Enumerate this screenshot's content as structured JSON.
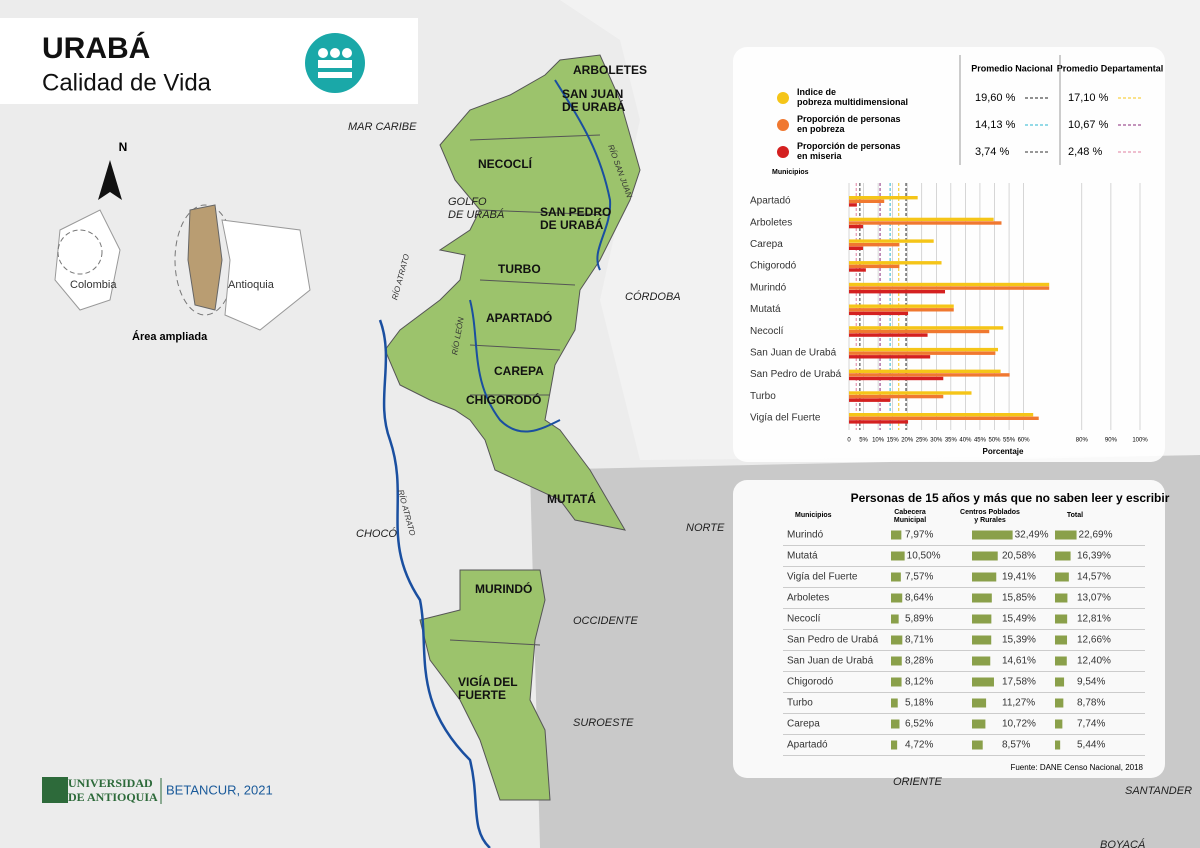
{
  "header": {
    "title": "URABÁ",
    "subtitle": "Calidad de Vida"
  },
  "map": {
    "labels": [
      {
        "lines": [
          "MAR CARIBE"
        ],
        "kind": "reg"
      },
      {
        "lines": [
          "GOLFO",
          "DE URABÁ"
        ],
        "kind": "reg"
      },
      {
        "lines": [
          "ARBOLETES"
        ],
        "kind": "lab"
      },
      {
        "lines": [
          "SAN JUAN",
          "DE URABÁ"
        ],
        "kind": "lab"
      },
      {
        "lines": [
          "NECOCLÍ"
        ],
        "kind": "lab"
      },
      {
        "lines": [
          "SAN PEDRO",
          "DE URABÁ"
        ],
        "kind": "lab"
      },
      {
        "lines": [
          "TURBO"
        ],
        "kind": "lab"
      },
      {
        "lines": [
          "CÓRDOBA"
        ],
        "kind": "reg"
      },
      {
        "lines": [
          "APARTADÓ"
        ],
        "kind": "lab"
      },
      {
        "lines": [
          "CAREPA"
        ],
        "kind": "lab"
      },
      {
        "lines": [
          "CHIGORODÓ"
        ],
        "kind": "lab"
      },
      {
        "lines": [
          "MUTATÁ"
        ],
        "kind": "lab"
      },
      {
        "lines": [
          "CHOCÓ"
        ],
        "kind": "reg"
      },
      {
        "lines": [
          "NORTE"
        ],
        "kind": "reg"
      },
      {
        "lines": [
          "MURINDÓ"
        ],
        "kind": "lab"
      },
      {
        "lines": [
          "OCCIDENTE"
        ],
        "kind": "reg"
      },
      {
        "lines": [
          "VIGÍA DEL",
          "FUERTE"
        ],
        "kind": "lab"
      },
      {
        "lines": [
          "SUROESTE"
        ],
        "kind": "reg"
      },
      {
        "lines": [
          "ORIENTE"
        ],
        "kind": "reg"
      },
      {
        "lines": [
          "SANTANDER"
        ],
        "kind": "reg"
      },
      {
        "lines": [
          "BOYACÁ"
        ],
        "kind": "reg"
      },
      {
        "lines": [
          "RÍO ATRATO"
        ],
        "kind": "riv"
      },
      {
        "lines": [
          "RÍO ATRATO"
        ],
        "kind": "riv"
      },
      {
        "lines": [
          "RÍO LEÓN"
        ],
        "kind": "riv"
      },
      {
        "lines": [
          "RÍO SAN JUAN"
        ],
        "kind": "riv"
      }
    ],
    "inset": {
      "north": "N",
      "country": "Colombia",
      "department": "Antioquia",
      "caption": "Área ampliada"
    }
  },
  "chart_data": {
    "type": "bar",
    "orientation": "horizontal",
    "legend_headers": [
      "Promedio Nacional",
      "Promedio Departamental"
    ],
    "indicators": [
      {
        "name": "Indice de pobreza multidimensional",
        "color": "#f5c518",
        "national": 19.6,
        "national_label": "19,60 %",
        "national_color": "#222",
        "departmental": 17.1,
        "departmental_label": "17,10 %",
        "departmental_color": "#f5c518"
      },
      {
        "name": "Proporción de personas en pobreza",
        "color": "#f07830",
        "national": 14.13,
        "national_label": "14,13 %",
        "national_color": "#2bb5d0",
        "departmental": 10.67,
        "departmental_label": "10,67 %",
        "departmental_color": "#8a2a7a"
      },
      {
        "name": "Proporción de personas en miseria",
        "color": "#d42020",
        "national": 3.74,
        "national_label": "3,74 %",
        "national_color": "#333",
        "departmental": 2.48,
        "departmental_label": "2,48 %",
        "departmental_color": "#e080a0"
      }
    ],
    "ylabel": "Municipios",
    "xlabel": "Porcentaje",
    "categories": [
      "Apartadó",
      "Arboletes",
      "Carepa",
      "Chigorodó",
      "Murindó",
      "Mutatá",
      "Necoclí",
      "San Juan de Urabá",
      "San Pedro de Urabá",
      "Turbo",
      "Vigía del Fuerte"
    ],
    "series": [
      {
        "name": "Indice de pobreza multidimensional",
        "color": "#f5c518",
        "values": [
          23.6,
          49.7,
          29.1,
          31.8,
          68.8,
          36,
          53,
          51.2,
          52.1,
          42.1,
          63.3
        ]
      },
      {
        "name": "Proporción de personas en pobreza",
        "color": "#f07830",
        "values": [
          12.1,
          52.4,
          17.3,
          17.3,
          68.8,
          36,
          48.2,
          50.3,
          55.2,
          32.4,
          65.2
        ]
      },
      {
        "name": "Proporción de personas en miseria",
        "color": "#d42020",
        "values": [
          2.7,
          4.8,
          4.8,
          5.8,
          33,
          20.3,
          27,
          27.9,
          32.4,
          14.2,
          20.3
        ]
      }
    ],
    "xlim": [
      0,
      100
    ],
    "xticks": [
      0,
      {
        "value": 5,
        "label": "5%"
      },
      {
        "value": 10,
        "label": "10%"
      },
      {
        "value": 15,
        "label": "15%"
      },
      {
        "value": 20,
        "label": "20%"
      },
      {
        "value": 25,
        "label": "25%"
      },
      {
        "value": 30,
        "label": "30%"
      },
      {
        "value": 35,
        "label": "35%"
      },
      {
        "value": 40,
        "label": "40%"
      },
      {
        "value": 45,
        "label": "45%"
      },
      {
        "value": 50,
        "label": "50%"
      },
      {
        "value": 55,
        "label": "55%"
      },
      {
        "value": 60,
        "label": "60%"
      },
      {
        "value": 80,
        "label": "80%"
      },
      {
        "value": 90,
        "label": "90%"
      },
      {
        "value": 100,
        "label": "100%"
      }
    ],
    "grid": true
  },
  "table": {
    "title": "Personas de 15 años y más que no saben leer y escribir",
    "headers": [
      "Municipios",
      "Cabecera Municipal",
      "Centros Poblados y Rurales",
      "Total"
    ],
    "bar_color": "#8aa04a",
    "rows": [
      {
        "name": "Murindó",
        "values": [
          7.97,
          32.49,
          22.69
        ],
        "labels": [
          "7,97%",
          "32,49%",
          "22,69%"
        ]
      },
      {
        "name": "Mutatá",
        "values": [
          10.5,
          20.58,
          16.39
        ],
        "labels": [
          "10,50%",
          "20,58%",
          "16,39%"
        ]
      },
      {
        "name": "Vigía del Fuerte",
        "values": [
          7.57,
          19.41,
          14.57
        ],
        "labels": [
          "7,57%",
          "19,41%",
          "14,57%"
        ]
      },
      {
        "name": "Arboletes",
        "values": [
          8.64,
          15.85,
          13.07
        ],
        "labels": [
          "8,64%",
          "15,85%",
          "13,07%"
        ]
      },
      {
        "name": "Necoclí",
        "values": [
          5.89,
          15.49,
          12.81
        ],
        "labels": [
          "5,89%",
          "15,49%",
          "12,81%"
        ]
      },
      {
        "name": "San Pedro de Urabá",
        "values": [
          8.71,
          15.39,
          12.66
        ],
        "labels": [
          "8,71%",
          "15,39%",
          "12,66%"
        ]
      },
      {
        "name": "San Juan de Urabá",
        "values": [
          8.28,
          14.61,
          12.4
        ],
        "labels": [
          "8,28%",
          "14,61%",
          "12,40%"
        ]
      },
      {
        "name": "Chigorodó",
        "values": [
          8.12,
          17.58,
          9.54
        ],
        "labels": [
          "8,12%",
          "17,58%",
          "9,54%"
        ]
      },
      {
        "name": "Turbo",
        "values": [
          5.18,
          11.27,
          8.78
        ],
        "labels": [
          "5,18%",
          "11,27%",
          "8,78%"
        ]
      },
      {
        "name": "Carepa",
        "values": [
          6.52,
          10.72,
          7.74
        ],
        "labels": [
          "6,52%",
          "10,72%",
          "7,74%"
        ]
      },
      {
        "name": "Apartadó",
        "values": [
          4.72,
          8.57,
          5.44
        ],
        "labels": [
          "4,72%",
          "8,57%",
          "5,44%"
        ]
      }
    ],
    "source": "Fuente: DANE Censo Nacional, 2018"
  },
  "footer": {
    "university": [
      "UNIVERSIDAD",
      "DE ANTIOQUIA"
    ],
    "author": "BETANCUR, 2021"
  }
}
